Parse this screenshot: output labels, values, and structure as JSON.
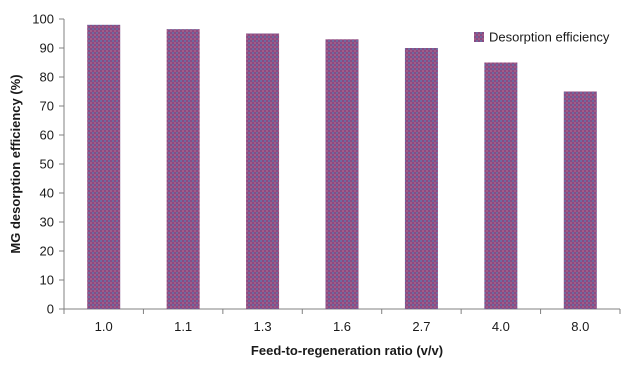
{
  "chart_data": {
    "type": "bar",
    "title": "",
    "xlabel": "Feed-to-regeneration ratio (v/v)",
    "ylabel": "MG desorption efficiency (%)",
    "categories": [
      "1.0",
      "1.1",
      "1.3",
      "1.6",
      "2.7",
      "4.0",
      "8.0"
    ],
    "series": [
      {
        "name": "Desorption efficiency",
        "values": [
          98,
          96.5,
          95,
          93,
          90,
          85,
          75
        ],
        "color": "#8b4a82"
      }
    ],
    "ylim": [
      0,
      100
    ],
    "yticks": [
      0,
      10,
      20,
      30,
      40,
      50,
      60,
      70,
      80,
      90,
      100
    ],
    "grid": false,
    "legend_position": "top-right"
  }
}
